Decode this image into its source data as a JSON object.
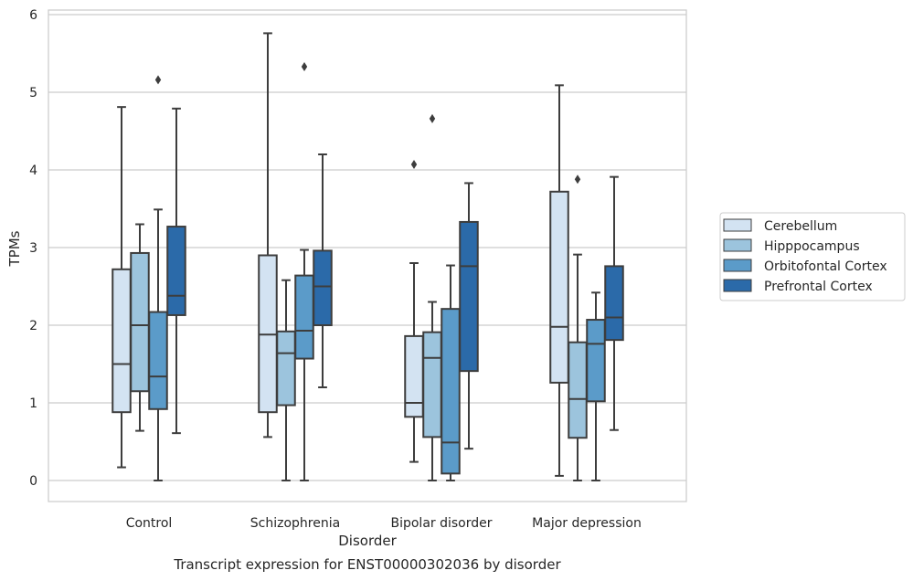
{
  "chart_data": {
    "type": "boxplot",
    "caption": "Transcript expression for ENST00000302036 by disorder",
    "xlabel": "Disorder",
    "ylabel": "TPMs",
    "ylim": [
      -0.3,
      6.05
    ],
    "yticks": [
      0,
      1,
      2,
      3,
      4,
      5,
      6
    ],
    "grid": "horizontal",
    "legend_position": "outside-right",
    "categories": [
      "Control",
      "Schizophrenia",
      "Bipolar disorder",
      "Major depression"
    ],
    "series": [
      {
        "name": "Cerebellum",
        "color": "#d3e3f2",
        "boxes": [
          {
            "whisker_low": 0.17,
            "q1": 0.88,
            "median": 1.5,
            "q3": 2.72,
            "whisker_high": 4.81,
            "outliers": []
          },
          {
            "whisker_low": 0.56,
            "q1": 0.88,
            "median": 1.88,
            "q3": 2.9,
            "whisker_high": 5.76,
            "outliers": []
          },
          {
            "whisker_low": 0.24,
            "q1": 0.82,
            "median": 1.0,
            "q3": 1.86,
            "whisker_high": 2.8,
            "outliers": [
              4.07
            ]
          },
          {
            "whisker_low": 0.06,
            "q1": 1.26,
            "median": 1.98,
            "q3": 3.72,
            "whisker_high": 5.09,
            "outliers": []
          }
        ]
      },
      {
        "name": "Hipppocampus",
        "color": "#9cc4dd",
        "boxes": [
          {
            "whisker_low": 0.64,
            "q1": 1.15,
            "median": 2.0,
            "q3": 2.93,
            "whisker_high": 3.3,
            "outliers": []
          },
          {
            "whisker_low": 0.0,
            "q1": 0.97,
            "median": 1.64,
            "q3": 1.92,
            "whisker_high": 2.58,
            "outliers": []
          },
          {
            "whisker_low": 0.0,
            "q1": 0.56,
            "median": 1.58,
            "q3": 1.91,
            "whisker_high": 2.3,
            "outliers": [
              4.66
            ]
          },
          {
            "whisker_low": 0.0,
            "q1": 0.55,
            "median": 1.05,
            "q3": 1.78,
            "whisker_high": 2.91,
            "outliers": [
              3.88
            ]
          }
        ]
      },
      {
        "name": "Orbitofontal Cortex",
        "color": "#5b9bc9",
        "boxes": [
          {
            "whisker_low": 0.0,
            "q1": 0.92,
            "median": 1.34,
            "q3": 2.17,
            "whisker_high": 3.49,
            "outliers": [
              5.16
            ]
          },
          {
            "whisker_low": 0.0,
            "q1": 1.57,
            "median": 1.93,
            "q3": 2.64,
            "whisker_high": 2.97,
            "outliers": [
              5.33
            ]
          },
          {
            "whisker_low": 0.0,
            "q1": 0.09,
            "median": 0.49,
            "q3": 2.21,
            "whisker_high": 2.77,
            "outliers": []
          },
          {
            "whisker_low": 0.0,
            "q1": 1.02,
            "median": 1.76,
            "q3": 2.07,
            "whisker_high": 2.42,
            "outliers": []
          }
        ]
      },
      {
        "name": "Prefrontal Cortex",
        "color": "#2b6aa9",
        "boxes": [
          {
            "whisker_low": 0.61,
            "q1": 2.13,
            "median": 2.38,
            "q3": 3.27,
            "whisker_high": 4.79,
            "outliers": []
          },
          {
            "whisker_low": 1.2,
            "q1": 2.0,
            "median": 2.5,
            "q3": 2.96,
            "whisker_high": 4.2,
            "outliers": []
          },
          {
            "whisker_low": 0.41,
            "q1": 1.41,
            "median": 2.76,
            "q3": 3.33,
            "whisker_high": 3.83,
            "outliers": []
          },
          {
            "whisker_low": 0.65,
            "q1": 1.81,
            "median": 2.1,
            "q3": 2.76,
            "whisker_high": 3.91,
            "outliers": []
          }
        ]
      }
    ]
  }
}
